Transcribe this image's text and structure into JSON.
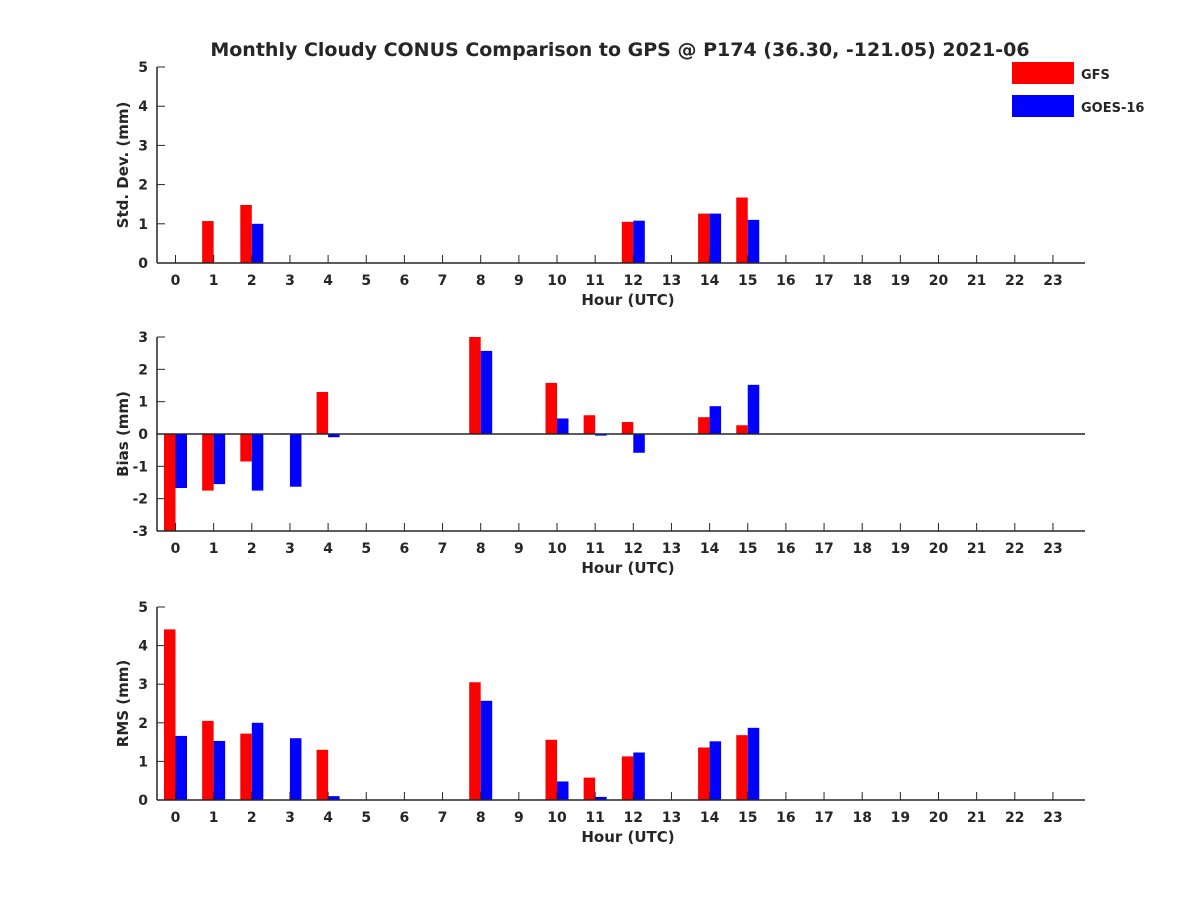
{
  "title": "Monthly Cloudy CONUS Comparison to GPS @ P174 (36.30, -121.05) 2021-06",
  "legend": [
    {
      "label": "GFS",
      "color": "#ff0000"
    },
    {
      "label": "GOES-16",
      "color": "#0000ff"
    }
  ],
  "chart_data": [
    {
      "type": "bar",
      "ylabel": "Std. Dev. (mm)",
      "xlabel": "Hour (UTC)",
      "ylim": [
        0,
        5
      ],
      "yticks": [
        0,
        1,
        2,
        3,
        4,
        5
      ],
      "categories": [
        0,
        1,
        2,
        3,
        4,
        5,
        6,
        7,
        8,
        9,
        10,
        11,
        12,
        13,
        14,
        15,
        16,
        17,
        18,
        19,
        20,
        21,
        22,
        23
      ],
      "series": [
        {
          "name": "GFS",
          "values": [
            0,
            1.07,
            1.48,
            0,
            0,
            0,
            0,
            0,
            0,
            0,
            0,
            0,
            1.05,
            0,
            1.26,
            1.67,
            0,
            0,
            0,
            0,
            0,
            0,
            0,
            0
          ]
        },
        {
          "name": "GOES-16",
          "values": [
            0,
            0,
            1.0,
            0,
            0,
            0,
            0,
            0,
            0,
            0,
            0,
            0,
            1.08,
            0,
            1.26,
            1.1,
            0,
            0,
            0,
            0,
            0,
            0,
            0,
            0
          ]
        }
      ]
    },
    {
      "type": "bar",
      "ylabel": "Bias (mm)",
      "xlabel": "Hour (UTC)",
      "ylim": [
        -3,
        3
      ],
      "yticks": [
        -3,
        -2,
        -1,
        0,
        1,
        2,
        3
      ],
      "categories": [
        0,
        1,
        2,
        3,
        4,
        5,
        6,
        7,
        8,
        9,
        10,
        11,
        12,
        13,
        14,
        15,
        16,
        17,
        18,
        19,
        20,
        21,
        22,
        23
      ],
      "series": [
        {
          "name": "GFS",
          "values": [
            -3.0,
            -1.75,
            -0.85,
            0.02,
            1.3,
            0,
            0,
            0,
            3.0,
            0,
            1.58,
            0.58,
            0.37,
            0,
            0.52,
            0.27,
            0,
            0,
            0,
            0,
            0,
            0,
            0,
            0
          ]
        },
        {
          "name": "GOES-16",
          "values": [
            -1.67,
            -1.55,
            -1.75,
            -1.63,
            -0.1,
            0,
            0,
            0,
            2.57,
            0,
            0.48,
            -0.05,
            -0.58,
            0,
            0.86,
            1.52,
            0,
            0,
            0,
            0,
            0,
            0,
            0,
            0
          ]
        }
      ]
    },
    {
      "type": "bar",
      "ylabel": "RMS (mm)",
      "xlabel": "Hour (UTC)",
      "ylim": [
        0,
        5
      ],
      "yticks": [
        0,
        1,
        2,
        3,
        4,
        5
      ],
      "categories": [
        0,
        1,
        2,
        3,
        4,
        5,
        6,
        7,
        8,
        9,
        10,
        11,
        12,
        13,
        14,
        15,
        16,
        17,
        18,
        19,
        20,
        21,
        22,
        23
      ],
      "series": [
        {
          "name": "GFS",
          "values": [
            4.42,
            2.05,
            1.72,
            0,
            1.3,
            0,
            0,
            0,
            3.05,
            0,
            1.56,
            0.58,
            1.13,
            0,
            1.36,
            1.68,
            0,
            0,
            0,
            0,
            0,
            0,
            0,
            0
          ]
        },
        {
          "name": "GOES-16",
          "values": [
            1.66,
            1.53,
            2.0,
            1.6,
            0.1,
            0,
            0,
            0,
            2.57,
            0,
            0.48,
            0.08,
            1.23,
            0,
            1.52,
            1.87,
            0,
            0,
            0,
            0,
            0,
            0,
            0,
            0
          ]
        }
      ]
    }
  ]
}
